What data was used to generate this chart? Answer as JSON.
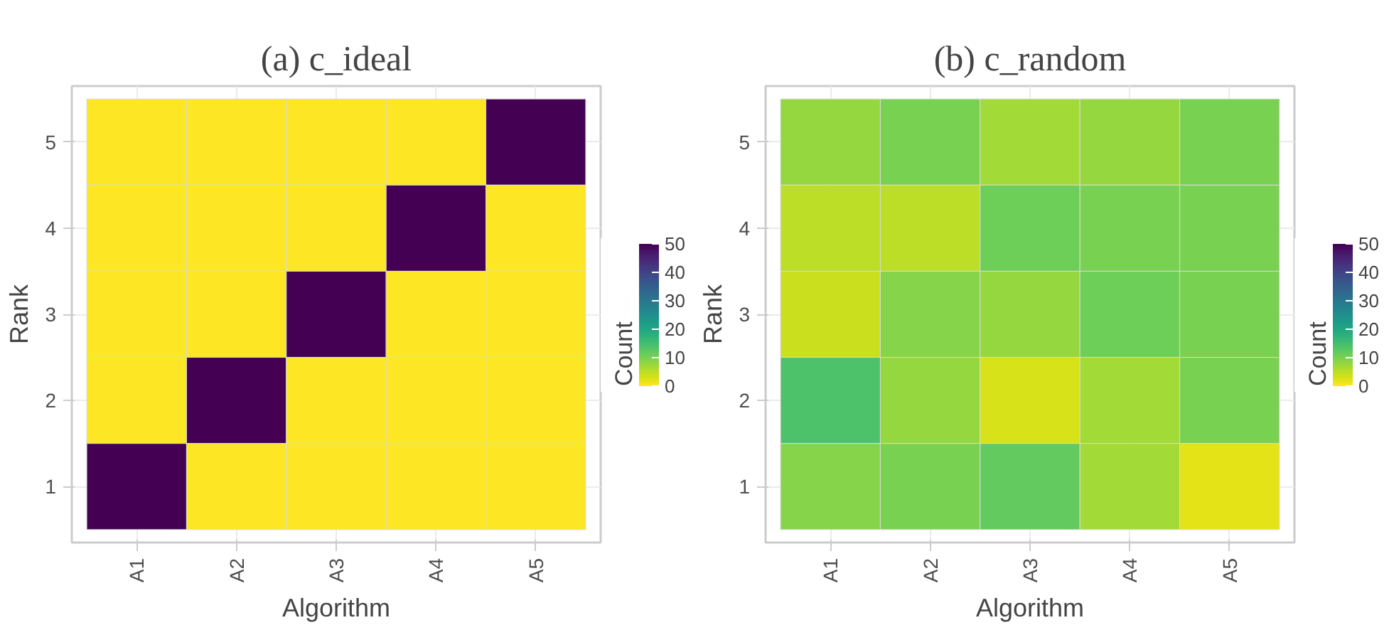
{
  "chart_data": [
    {
      "type": "heatmap",
      "title": "(a) c_ideal",
      "xlabel": "Algorithm",
      "ylabel": "Rank",
      "clabel": "Count",
      "categories": [
        "A1",
        "A2",
        "A3",
        "A4",
        "A5"
      ],
      "y_categories": [
        "5",
        "4",
        "3",
        "2",
        "1"
      ],
      "cells": [
        [
          0,
          0,
          0,
          0,
          50
        ],
        [
          0,
          0,
          0,
          50,
          0
        ],
        [
          0,
          0,
          50,
          0,
          0
        ],
        [
          0,
          50,
          0,
          0,
          0
        ],
        [
          50,
          0,
          0,
          0,
          0
        ]
      ],
      "clim": [
        0,
        50
      ],
      "cticks": [
        0,
        10,
        20,
        30,
        40,
        50
      ],
      "grid": true
    },
    {
      "type": "heatmap",
      "title": "(b) c_random",
      "xlabel": "Algorithm",
      "ylabel": "Rank",
      "clabel": "Count",
      "categories": [
        "A1",
        "A2",
        "A3",
        "A4",
        "A5"
      ],
      "y_categories": [
        "5",
        "4",
        "3",
        "2",
        "1"
      ],
      "cells": [
        [
          8,
          10,
          7,
          8,
          10
        ],
        [
          5,
          5,
          11,
          10,
          10
        ],
        [
          4,
          9,
          8,
          11,
          10
        ],
        [
          14,
          8,
          3,
          7,
          10
        ],
        [
          9,
          10,
          12,
          7,
          2
        ]
      ],
      "clim": [
        0,
        50
      ],
      "cticks": [
        0,
        10,
        20,
        30,
        40,
        50
      ],
      "grid": true
    }
  ]
}
